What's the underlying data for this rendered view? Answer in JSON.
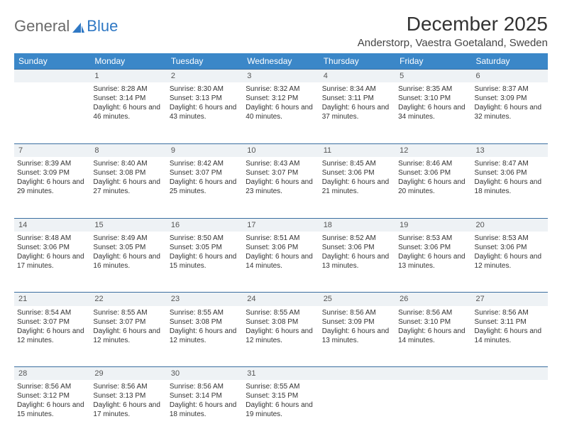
{
  "logo": {
    "text1": "General",
    "text2": "Blue"
  },
  "title": "December 2025",
  "location": "Anderstorp, Vaestra Goetaland, Sweden",
  "colors": {
    "header_bg": "#3b87c8",
    "header_text": "#ffffff",
    "daynum_bg": "#eef2f5",
    "daynum_border": "#3b6ea0",
    "logo_gray": "#6a6a6a",
    "logo_blue": "#2f78c4"
  },
  "weekdays": [
    "Sunday",
    "Monday",
    "Tuesday",
    "Wednesday",
    "Thursday",
    "Friday",
    "Saturday"
  ],
  "weeks": [
    {
      "nums": [
        "",
        "1",
        "2",
        "3",
        "4",
        "5",
        "6"
      ],
      "cells": [
        {},
        {
          "sunrise": "Sunrise: 8:28 AM",
          "sunset": "Sunset: 3:14 PM",
          "day": "Daylight: 6 hours and 46 minutes."
        },
        {
          "sunrise": "Sunrise: 8:30 AM",
          "sunset": "Sunset: 3:13 PM",
          "day": "Daylight: 6 hours and 43 minutes."
        },
        {
          "sunrise": "Sunrise: 8:32 AM",
          "sunset": "Sunset: 3:12 PM",
          "day": "Daylight: 6 hours and 40 minutes."
        },
        {
          "sunrise": "Sunrise: 8:34 AM",
          "sunset": "Sunset: 3:11 PM",
          "day": "Daylight: 6 hours and 37 minutes."
        },
        {
          "sunrise": "Sunrise: 8:35 AM",
          "sunset": "Sunset: 3:10 PM",
          "day": "Daylight: 6 hours and 34 minutes."
        },
        {
          "sunrise": "Sunrise: 8:37 AM",
          "sunset": "Sunset: 3:09 PM",
          "day": "Daylight: 6 hours and 32 minutes."
        }
      ]
    },
    {
      "nums": [
        "7",
        "8",
        "9",
        "10",
        "11",
        "12",
        "13"
      ],
      "cells": [
        {
          "sunrise": "Sunrise: 8:39 AM",
          "sunset": "Sunset: 3:09 PM",
          "day": "Daylight: 6 hours and 29 minutes."
        },
        {
          "sunrise": "Sunrise: 8:40 AM",
          "sunset": "Sunset: 3:08 PM",
          "day": "Daylight: 6 hours and 27 minutes."
        },
        {
          "sunrise": "Sunrise: 8:42 AM",
          "sunset": "Sunset: 3:07 PM",
          "day": "Daylight: 6 hours and 25 minutes."
        },
        {
          "sunrise": "Sunrise: 8:43 AM",
          "sunset": "Sunset: 3:07 PM",
          "day": "Daylight: 6 hours and 23 minutes."
        },
        {
          "sunrise": "Sunrise: 8:45 AM",
          "sunset": "Sunset: 3:06 PM",
          "day": "Daylight: 6 hours and 21 minutes."
        },
        {
          "sunrise": "Sunrise: 8:46 AM",
          "sunset": "Sunset: 3:06 PM",
          "day": "Daylight: 6 hours and 20 minutes."
        },
        {
          "sunrise": "Sunrise: 8:47 AM",
          "sunset": "Sunset: 3:06 PM",
          "day": "Daylight: 6 hours and 18 minutes."
        }
      ]
    },
    {
      "nums": [
        "14",
        "15",
        "16",
        "17",
        "18",
        "19",
        "20"
      ],
      "cells": [
        {
          "sunrise": "Sunrise: 8:48 AM",
          "sunset": "Sunset: 3:06 PM",
          "day": "Daylight: 6 hours and 17 minutes."
        },
        {
          "sunrise": "Sunrise: 8:49 AM",
          "sunset": "Sunset: 3:05 PM",
          "day": "Daylight: 6 hours and 16 minutes."
        },
        {
          "sunrise": "Sunrise: 8:50 AM",
          "sunset": "Sunset: 3:05 PM",
          "day": "Daylight: 6 hours and 15 minutes."
        },
        {
          "sunrise": "Sunrise: 8:51 AM",
          "sunset": "Sunset: 3:06 PM",
          "day": "Daylight: 6 hours and 14 minutes."
        },
        {
          "sunrise": "Sunrise: 8:52 AM",
          "sunset": "Sunset: 3:06 PM",
          "day": "Daylight: 6 hours and 13 minutes."
        },
        {
          "sunrise": "Sunrise: 8:53 AM",
          "sunset": "Sunset: 3:06 PM",
          "day": "Daylight: 6 hours and 13 minutes."
        },
        {
          "sunrise": "Sunrise: 8:53 AM",
          "sunset": "Sunset: 3:06 PM",
          "day": "Daylight: 6 hours and 12 minutes."
        }
      ]
    },
    {
      "nums": [
        "21",
        "22",
        "23",
        "24",
        "25",
        "26",
        "27"
      ],
      "cells": [
        {
          "sunrise": "Sunrise: 8:54 AM",
          "sunset": "Sunset: 3:07 PM",
          "day": "Daylight: 6 hours and 12 minutes."
        },
        {
          "sunrise": "Sunrise: 8:55 AM",
          "sunset": "Sunset: 3:07 PM",
          "day": "Daylight: 6 hours and 12 minutes."
        },
        {
          "sunrise": "Sunrise: 8:55 AM",
          "sunset": "Sunset: 3:08 PM",
          "day": "Daylight: 6 hours and 12 minutes."
        },
        {
          "sunrise": "Sunrise: 8:55 AM",
          "sunset": "Sunset: 3:08 PM",
          "day": "Daylight: 6 hours and 12 minutes."
        },
        {
          "sunrise": "Sunrise: 8:56 AM",
          "sunset": "Sunset: 3:09 PM",
          "day": "Daylight: 6 hours and 13 minutes."
        },
        {
          "sunrise": "Sunrise: 8:56 AM",
          "sunset": "Sunset: 3:10 PM",
          "day": "Daylight: 6 hours and 14 minutes."
        },
        {
          "sunrise": "Sunrise: 8:56 AM",
          "sunset": "Sunset: 3:11 PM",
          "day": "Daylight: 6 hours and 14 minutes."
        }
      ]
    },
    {
      "nums": [
        "28",
        "29",
        "30",
        "31",
        "",
        "",
        ""
      ],
      "cells": [
        {
          "sunrise": "Sunrise: 8:56 AM",
          "sunset": "Sunset: 3:12 PM",
          "day": "Daylight: 6 hours and 15 minutes."
        },
        {
          "sunrise": "Sunrise: 8:56 AM",
          "sunset": "Sunset: 3:13 PM",
          "day": "Daylight: 6 hours and 17 minutes."
        },
        {
          "sunrise": "Sunrise: 8:56 AM",
          "sunset": "Sunset: 3:14 PM",
          "day": "Daylight: 6 hours and 18 minutes."
        },
        {
          "sunrise": "Sunrise: 8:55 AM",
          "sunset": "Sunset: 3:15 PM",
          "day": "Daylight: 6 hours and 19 minutes."
        },
        {},
        {},
        {}
      ]
    }
  ]
}
